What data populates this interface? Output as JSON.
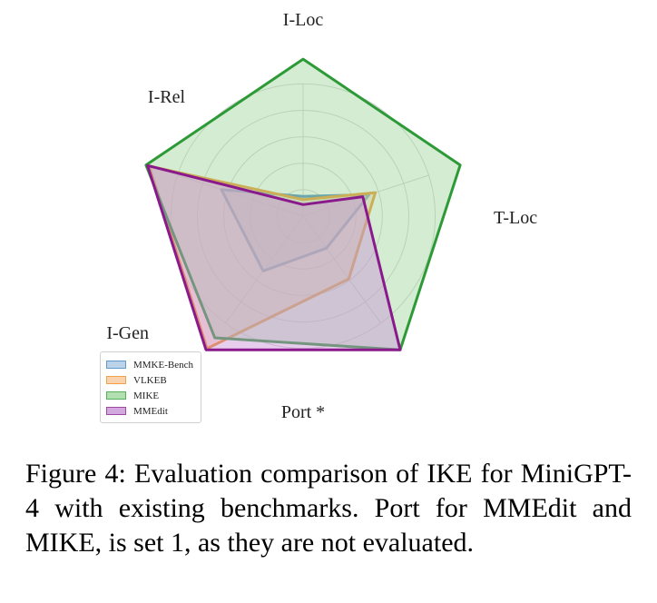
{
  "chart_data": {
    "type": "radar",
    "axes": [
      "I-Loc",
      "T-Loc",
      "Port *",
      "I-Gen",
      "I-Rel"
    ],
    "rlim": [
      0,
      1
    ],
    "grid": true,
    "legend_position": "bottom-left",
    "series": [
      {
        "name": "MMKE-Bench",
        "color": "#3e7fb8",
        "fill": "#a9c9e6",
        "values": [
          0.12,
          0.42,
          0.24,
          0.41,
          0.52
        ]
      },
      {
        "name": "VLKEB",
        "color": "#f08c1e",
        "fill": "#f8c89a",
        "values": [
          0.1,
          0.46,
          0.47,
          0.99,
          0.98
        ]
      },
      {
        "name": "MIKE",
        "color": "#2e9a37",
        "fill": "#9fd89c",
        "values": [
          0.95,
          1.0,
          1.0,
          0.91,
          1.0
        ]
      },
      {
        "name": "MMEdit",
        "color": "#8a1a8c",
        "fill": "#c993d8",
        "values": [
          0.07,
          0.38,
          1.0,
          1.0,
          0.99
        ]
      }
    ]
  },
  "caption": "Figure 4: Evaluation comparison of IKE for MiniGPT-4 with existing benchmarks. Port for MMEdit and MIKE, is set 1, as they are not evaluated."
}
